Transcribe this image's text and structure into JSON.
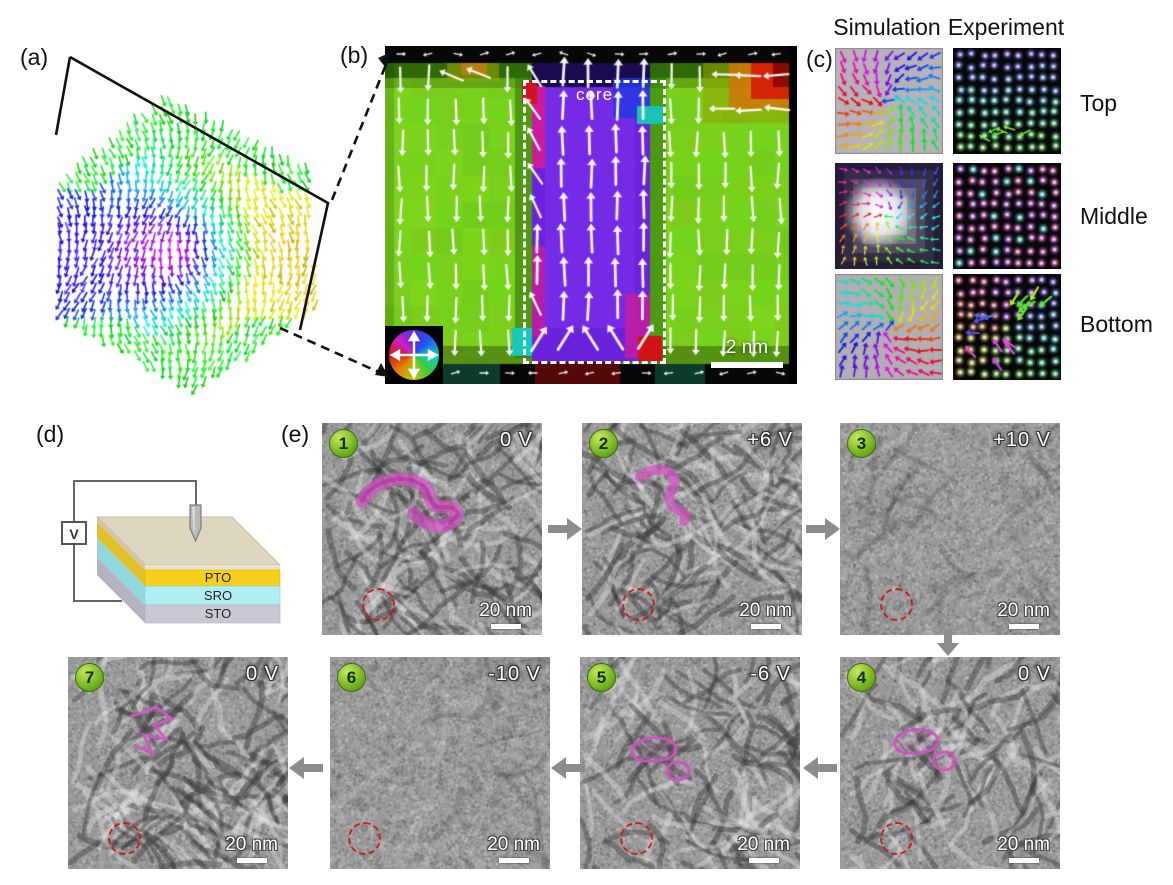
{
  "figure": {
    "description": "Polar vortex / ferroelectric domain figure with 3D polarization map, core zoom, simulation-experiment comparison, device schematic and voltage switching TEM series"
  },
  "panels": {
    "a": {
      "label": "(a)"
    },
    "b": {
      "label": "(b)",
      "core_label": "core",
      "scale_bar": "2 nm"
    },
    "c": {
      "label": "(c)",
      "col_headers": [
        "Simulation",
        "Experiment"
      ],
      "row_labels": [
        "Top",
        "Middle",
        "Bottom"
      ]
    },
    "d": {
      "label": "(d)",
      "voltmeter_label": "V",
      "layers": [
        {
          "name": "PTO",
          "color": "#f6d01b"
        },
        {
          "name": "SRO",
          "color": "#b0eef2"
        },
        {
          "name": "STO",
          "color": "#cbc8d5"
        }
      ]
    },
    "e": {
      "label": "(e)",
      "scale_bar": "20 nm",
      "frames": [
        {
          "number": "1",
          "voltage": "0 V"
        },
        {
          "number": "2",
          "voltage": "+6 V"
        },
        {
          "number": "3",
          "voltage": "+10 V"
        },
        {
          "number": "4",
          "voltage": "0 V"
        },
        {
          "number": "5",
          "voltage": "-6 V"
        },
        {
          "number": "6",
          "voltage": "-10 V"
        },
        {
          "number": "7",
          "voltage": "0 V"
        }
      ]
    }
  },
  "colors": {
    "field_green": "#79d31d",
    "core_purple": "#6a22dd",
    "core_magenta": "#c91d9c",
    "badge_green": "#72b31f",
    "step_arrow_gray": "#8c8c8c",
    "defect_circle_red": "#cf1515",
    "domain_pink": "#d44fc4",
    "arrow_white": "#ffffff"
  }
}
